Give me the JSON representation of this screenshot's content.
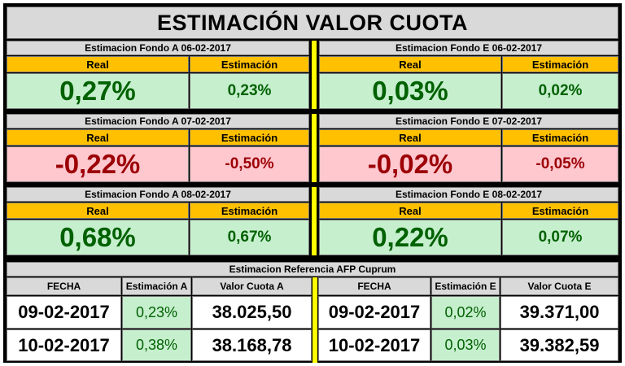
{
  "title": "ESTIMACIÓN VALOR CUOTA",
  "labels": {
    "real": "Real",
    "estimacion": "Estimación"
  },
  "blocks": [
    {
      "left": {
        "header": "Estimacion Fondo A  06-02-2017",
        "real": "0,27%",
        "estimacion": "0,23%"
      },
      "right": {
        "header": "Estimacion Fondo E  06-02-2017",
        "real": "0,03%",
        "estimacion": "0,02%"
      }
    },
    {
      "left": {
        "header": "Estimacion Fondo A  07-02-2017",
        "real": "-0,22%",
        "estimacion": "-0,50%"
      },
      "right": {
        "header": "Estimacion Fondo E  07-02-2017",
        "real": "-0,02%",
        "estimacion": "-0,05%"
      }
    },
    {
      "left": {
        "header": "Estimacion Fondo A  08-02-2017",
        "real": "0,68%",
        "estimacion": "0,67%"
      },
      "right": {
        "header": "Estimacion Fondo E  08-02-2017",
        "real": "0,22%",
        "estimacion": "0,07%"
      }
    }
  ],
  "reference": {
    "header": "Estimacion Referencia AFP Cuprum",
    "columns": [
      "FECHA",
      "Estimación A",
      "Valor Cuota A",
      "FECHA",
      "Estimación E",
      "Valor Cuota E"
    ],
    "rows": [
      [
        "09-02-2017",
        "0,23%",
        "38.025,50",
        "09-02-2017",
        "0,02%",
        "39.371,00"
      ],
      [
        "10-02-2017",
        "0,38%",
        "38.168,78",
        "10-02-2017",
        "0,03%",
        "39.382,59"
      ]
    ]
  },
  "colors": {
    "positive_bg": "#c6efce",
    "positive_text": "#006100",
    "negative_bg": "#ffc7ce",
    "negative_text": "#9c0006",
    "label_bg": "#ffc000",
    "header_bg": "#d9d9d9",
    "divider": "#ffff00"
  }
}
